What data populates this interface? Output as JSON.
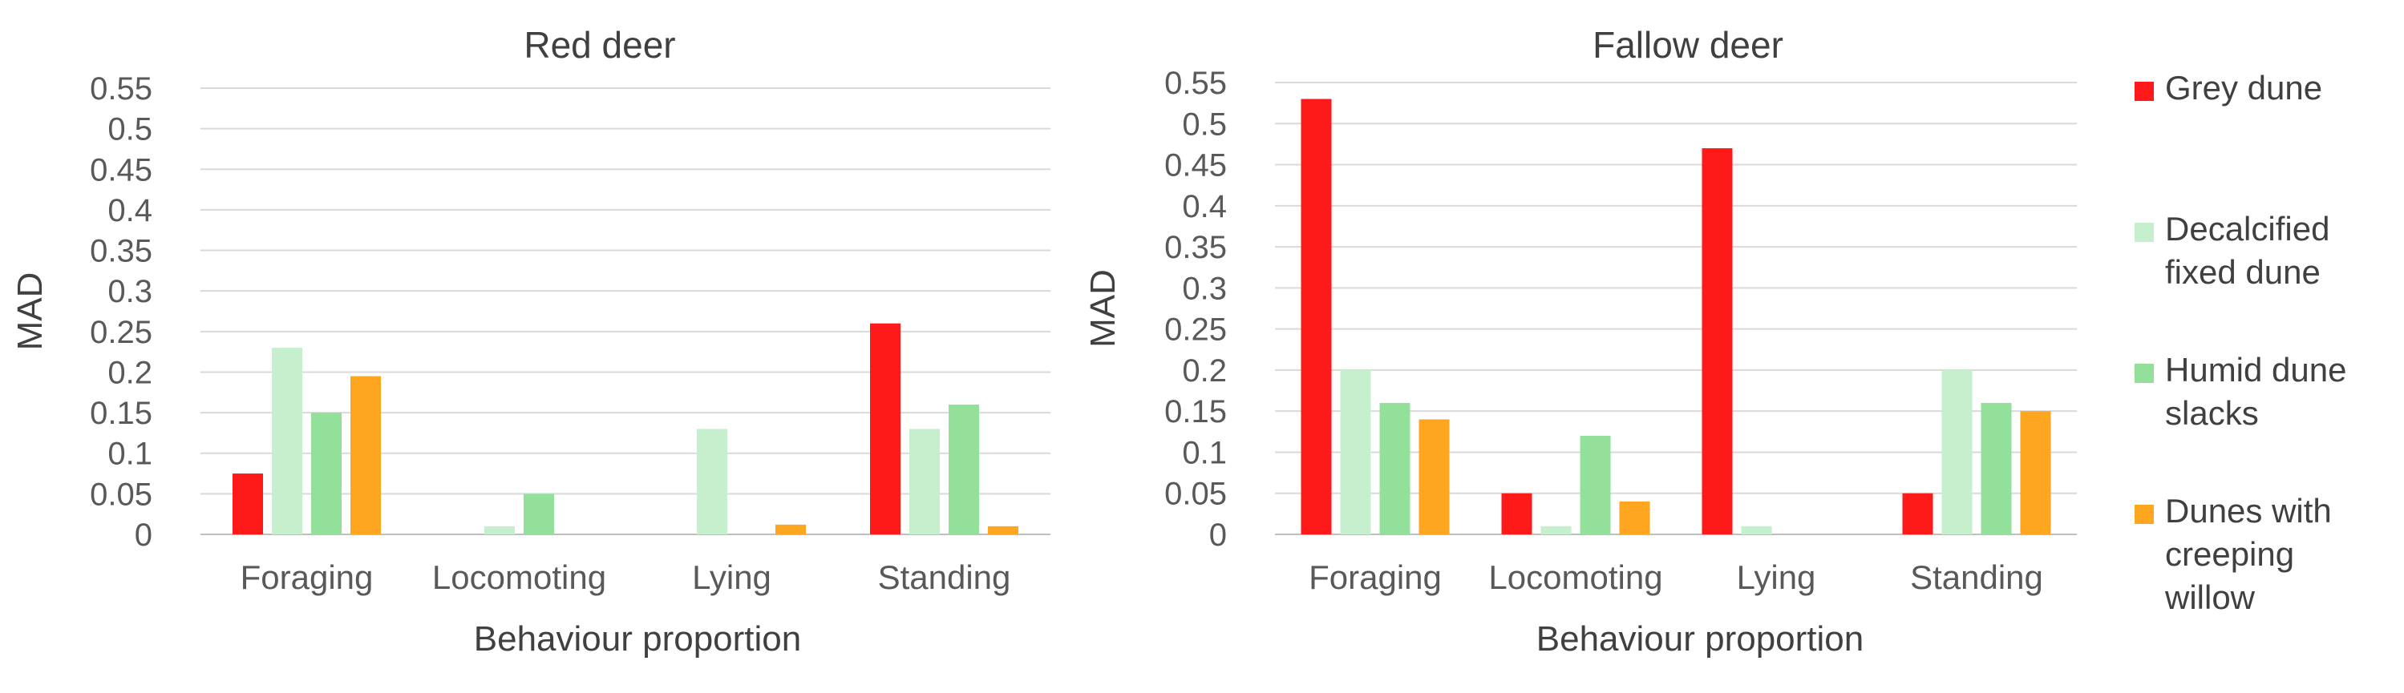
{
  "chart_data": [
    {
      "type": "bar",
      "title": "Red deer",
      "xlabel": "Behaviour proportion",
      "ylabel": "MAD",
      "ylim": [
        0,
        0.55
      ],
      "yticks": [
        "0",
        "0.05",
        "0.1",
        "0.15",
        "0.2",
        "0.25",
        "0.3",
        "0.35",
        "0.4",
        "0.45",
        "0.5",
        "0.55"
      ],
      "grid": true,
      "categories": [
        "Foraging",
        "Locomoting",
        "Lying",
        "Standing"
      ],
      "series": [
        {
          "name": "Grey dune",
          "values": [
            0.075,
            0,
            0,
            0.26
          ]
        },
        {
          "name": "Decalcified fixed dune",
          "values": [
            0.23,
            0.01,
            0.13,
            0.13
          ]
        },
        {
          "name": "Humid dune slacks",
          "values": [
            0.15,
            0.05,
            0,
            0.16
          ]
        },
        {
          "name": "Dunes with creeping willow",
          "values": [
            0.195,
            0,
            0.012,
            0.01
          ]
        }
      ]
    },
    {
      "type": "bar",
      "title": "Fallow deer",
      "xlabel": "Behaviour proportion",
      "ylabel": "MAD",
      "ylim": [
        0,
        0.55
      ],
      "yticks": [
        "0",
        "0.05",
        "0.1",
        "0.15",
        "0.2",
        "0.25",
        "0.3",
        "0.35",
        "0.4",
        "0.45",
        "0.5",
        "0.55"
      ],
      "grid": true,
      "categories": [
        "Foraging",
        "Locomoting",
        "Lying",
        "Standing"
      ],
      "series": [
        {
          "name": "Grey dune",
          "values": [
            0.53,
            0.05,
            0.47,
            0.05
          ]
        },
        {
          "name": "Decalcified fixed dune",
          "values": [
            0.2,
            0.01,
            0.01,
            0.2
          ]
        },
        {
          "name": "Humid dune slacks",
          "values": [
            0.16,
            0.12,
            0,
            0.16
          ]
        },
        {
          "name": "Dunes with creeping willow",
          "values": [
            0.14,
            0.04,
            0,
            0.15
          ]
        }
      ]
    }
  ],
  "legend": {
    "position": "right",
    "items": [
      {
        "lines": [
          "Grey dune"
        ],
        "color": "#ff1a1a"
      },
      {
        "lines": [
          "Decalcified",
          "fixed dune"
        ],
        "color": "#c6efce"
      },
      {
        "lines": [
          "Humid dune",
          "slacks"
        ],
        "color": "#92e09a"
      },
      {
        "lines": [
          "Dunes with",
          "creeping",
          "willow"
        ],
        "color": "#ffa620"
      }
    ]
  },
  "colors": [
    "#ff1a1a",
    "#c6efce",
    "#92e09a",
    "#ffa620"
  ]
}
